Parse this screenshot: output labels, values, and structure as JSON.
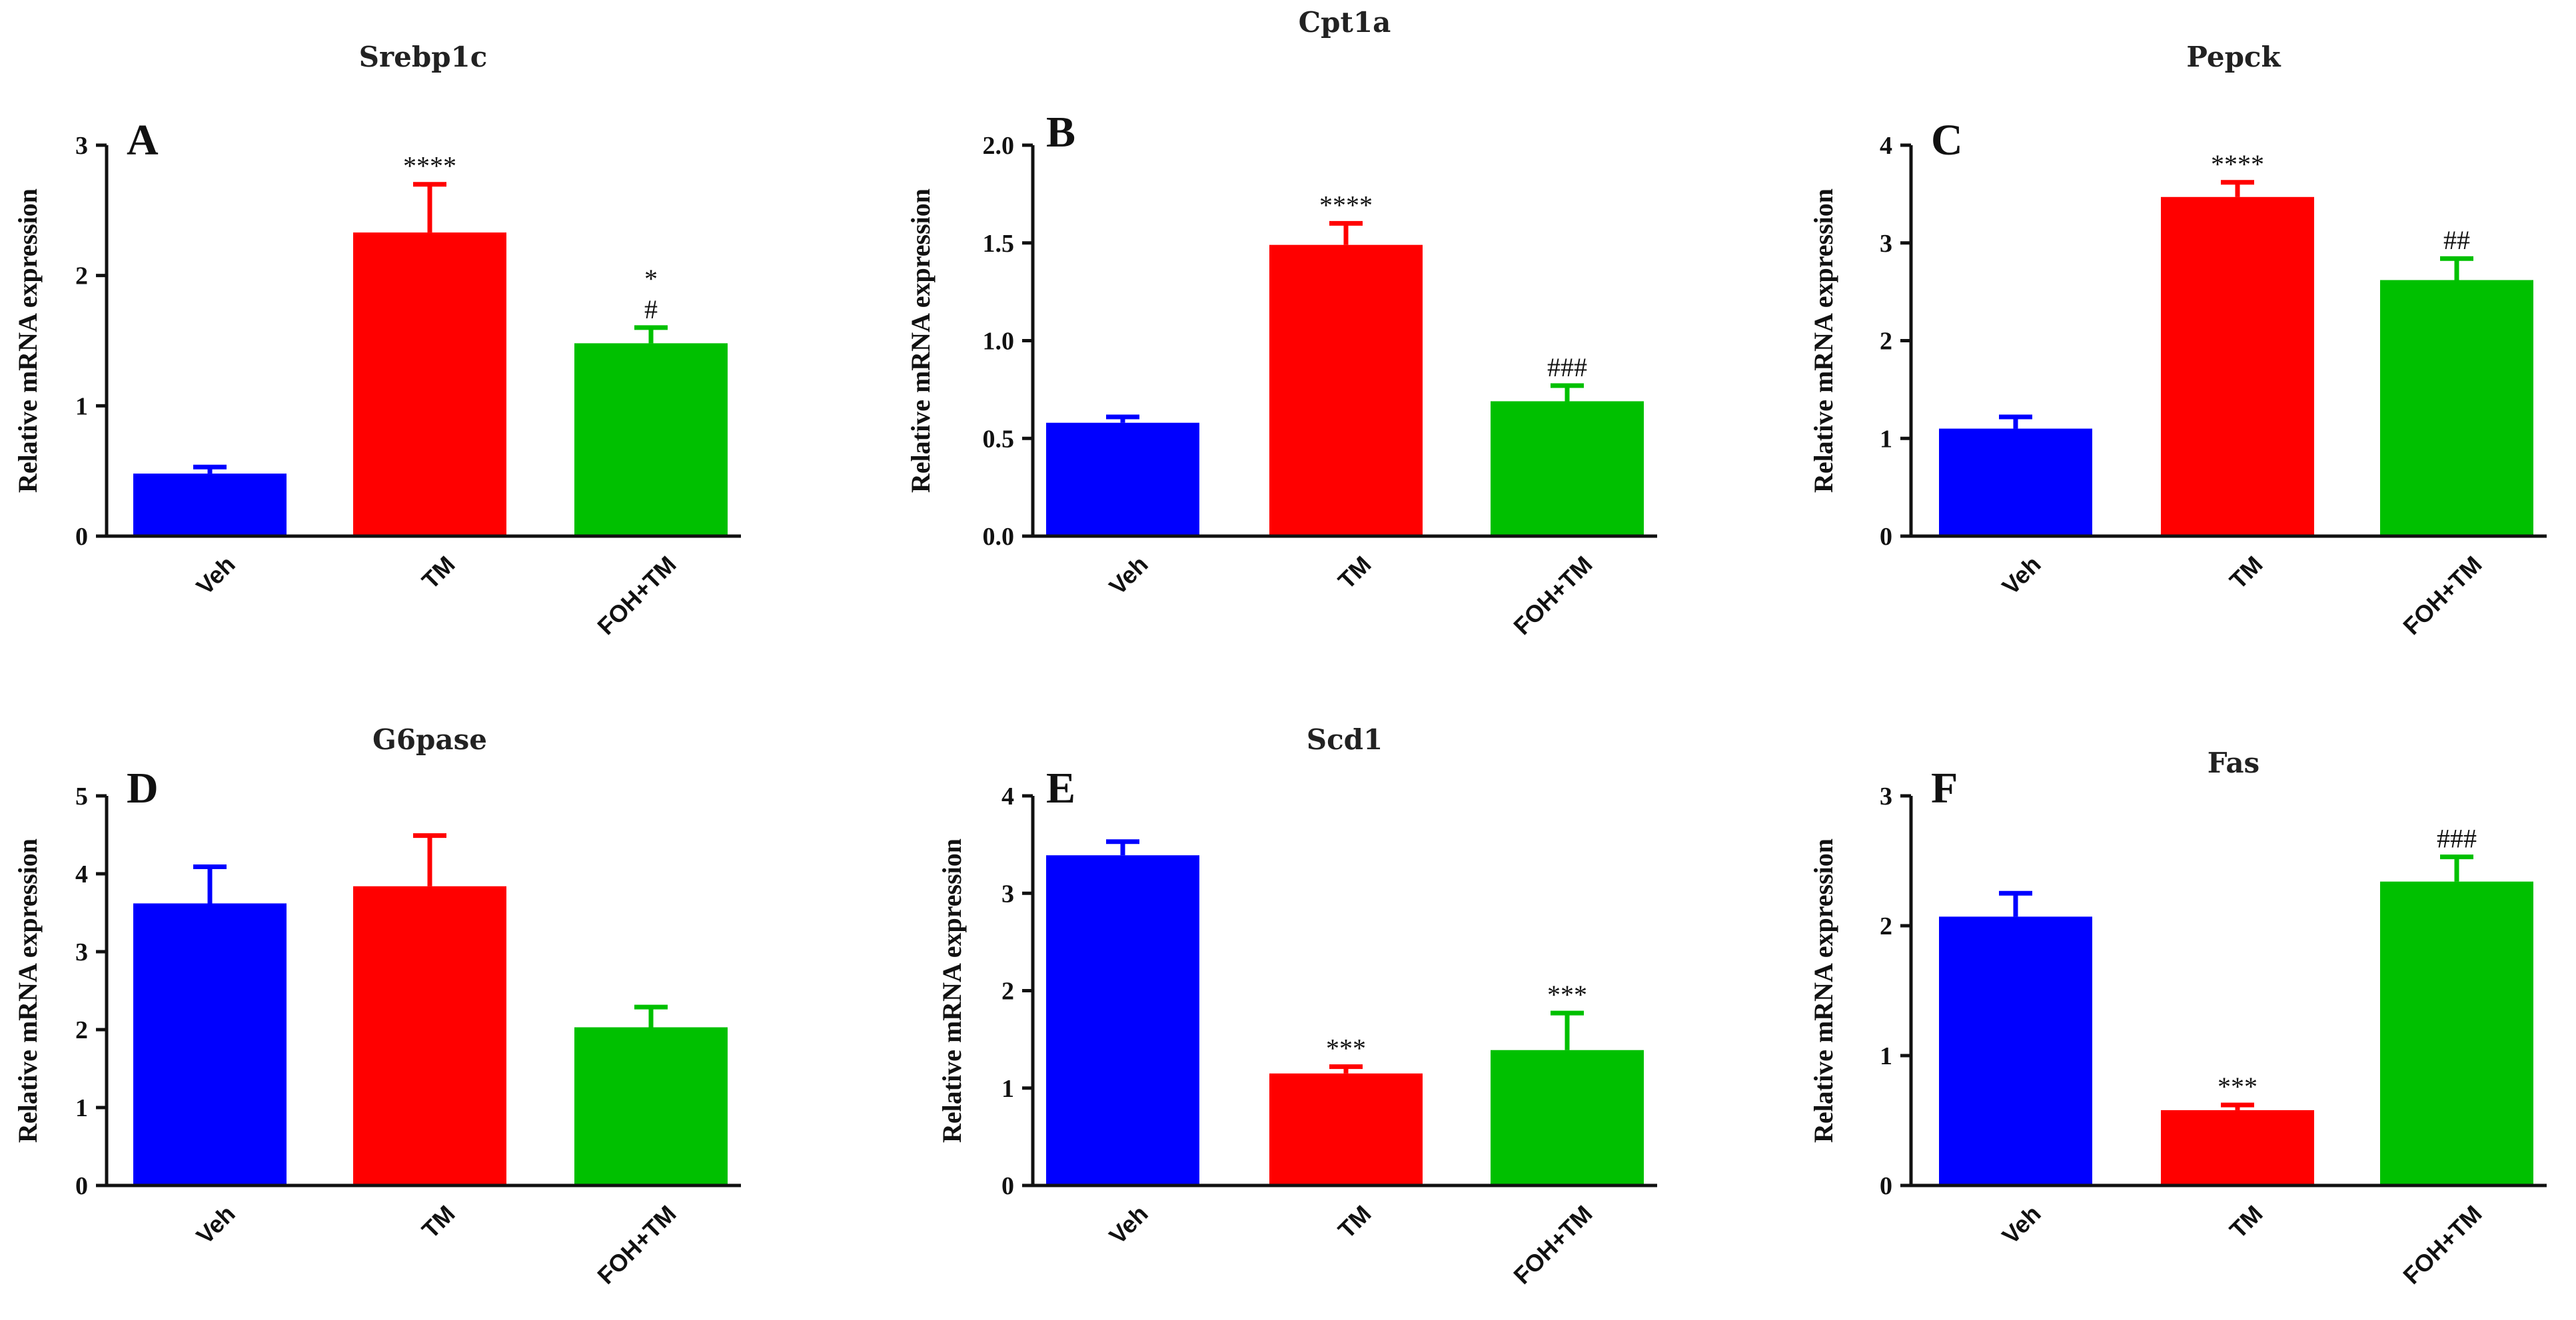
{
  "chart_data": [
    {
      "type": "bar",
      "letter": "A",
      "title": "Srebp1c",
      "ylabel": "Relative mRNA expression",
      "categories": [
        "Veh",
        "TM",
        "FOH+TM"
      ],
      "values": [
        0.48,
        2.33,
        1.48
      ],
      "errors": [
        0.05,
        0.37,
        0.12
      ],
      "annotations": [
        [],
        [
          "****"
        ],
        [
          "*",
          "#"
        ]
      ],
      "ylim": [
        0,
        3
      ],
      "yticks": [
        "0",
        "1",
        "2",
        "3"
      ],
      "ytick_values": [
        0,
        1,
        2,
        3
      ]
    },
    {
      "type": "bar",
      "letter": "B",
      "title": "Cpt1a",
      "ylabel": "Relative mRNA expression",
      "categories": [
        "Veh",
        "TM",
        "FOH+TM"
      ],
      "values": [
        0.58,
        1.49,
        0.69
      ],
      "errors": [
        0.03,
        0.11,
        0.08
      ],
      "annotations": [
        [],
        [
          "****"
        ],
        [
          "###"
        ]
      ],
      "ylim": [
        0,
        2.0
      ],
      "yticks": [
        "0.0",
        "0.5",
        "1.0",
        "1.5",
        "2.0"
      ],
      "ytick_values": [
        0,
        0.5,
        1.0,
        1.5,
        2.0
      ]
    },
    {
      "type": "bar",
      "letter": "C",
      "title": "Pepck",
      "ylabel": "Relative mRNA expression",
      "categories": [
        "Veh",
        "TM",
        "FOH+TM"
      ],
      "values": [
        1.1,
        3.47,
        2.62
      ],
      "errors": [
        0.12,
        0.15,
        0.22
      ],
      "annotations": [
        [],
        [
          "****"
        ],
        [
          "##"
        ]
      ],
      "ylim": [
        0,
        4
      ],
      "yticks": [
        "0",
        "1",
        "2",
        "3",
        "4"
      ],
      "ytick_values": [
        0,
        1,
        2,
        3,
        4
      ]
    },
    {
      "type": "bar",
      "letter": "D",
      "title": "G6pase",
      "ylabel": "Relative mRNA expression",
      "categories": [
        "Veh",
        "TM",
        "FOH+TM"
      ],
      "values": [
        3.62,
        3.84,
        2.03
      ],
      "errors": [
        0.47,
        0.65,
        0.26
      ],
      "annotations": [
        [],
        [],
        []
      ],
      "ylim": [
        0,
        5
      ],
      "yticks": [
        "0",
        "1",
        "2",
        "3",
        "4",
        "5"
      ],
      "ytick_values": [
        0,
        1,
        2,
        3,
        4,
        5
      ]
    },
    {
      "type": "bar",
      "letter": "E",
      "title": "Scd1",
      "ylabel": "Relative mRNA expression",
      "categories": [
        "Veh",
        "TM",
        "FOH+TM"
      ],
      "values": [
        3.39,
        1.15,
        1.39
      ],
      "errors": [
        0.14,
        0.07,
        0.38
      ],
      "annotations": [
        [],
        [
          "***"
        ],
        [
          "***"
        ]
      ],
      "ylim": [
        0,
        4
      ],
      "yticks": [
        "0",
        "1",
        "2",
        "3",
        "4"
      ],
      "ytick_values": [
        0,
        1,
        2,
        3,
        4
      ]
    },
    {
      "type": "bar",
      "letter": "F",
      "title": "Fas",
      "ylabel": "Relative mRNA expression",
      "categories": [
        "Veh",
        "TM",
        "FOH+TM"
      ],
      "values": [
        2.07,
        0.58,
        2.34
      ],
      "errors": [
        0.18,
        0.04,
        0.19
      ],
      "annotations": [
        [],
        [
          "***"
        ],
        [
          "###"
        ]
      ],
      "ylim": [
        0,
        3
      ],
      "yticks": [
        "0",
        "1",
        "2",
        "3"
      ],
      "ytick_values": [
        0,
        1,
        2,
        3
      ]
    }
  ],
  "colors": {
    "Veh": "#0000ff",
    "TM": "#ff0000",
    "FOH+TM": "#00c000",
    "axis": "#111111"
  }
}
